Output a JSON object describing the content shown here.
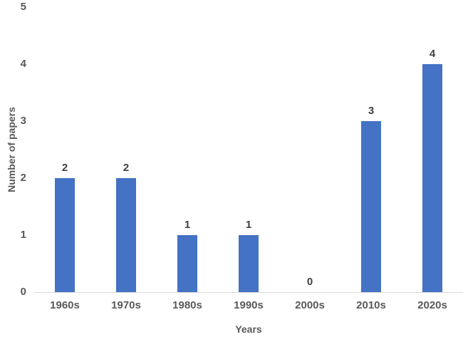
{
  "chart_data": {
    "type": "bar",
    "categories": [
      "1960s",
      "1970s",
      "1980s",
      "1990s",
      "2000s",
      "2010s",
      "2020s"
    ],
    "values": [
      2,
      2,
      1,
      1,
      0,
      3,
      4
    ],
    "data_labels": [
      "2",
      "2",
      "1",
      "1",
      "0",
      "3",
      "4"
    ],
    "title": "",
    "xlabel": "Years",
    "ylabel": "Number of papers",
    "ylim": [
      0,
      5
    ],
    "yticks": [
      "0",
      "1",
      "2",
      "3",
      "4",
      "5"
    ],
    "grid": false,
    "legend": "none"
  },
  "colors": {
    "bar": "#4472C4",
    "tick_label": "#595959",
    "data_label": "#404040",
    "axis_title": "#595959",
    "axis_line": "#D9D9D9",
    "background": "#FFFFFF"
  }
}
